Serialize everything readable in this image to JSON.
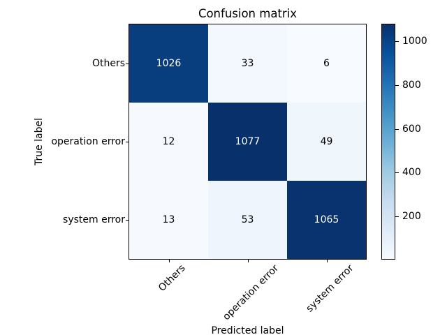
{
  "figure": {
    "background": "#ffffff",
    "text_color": "#000000"
  },
  "chart_data": {
    "type": "heatmap",
    "title": "Confusion matrix",
    "xlabel": "Predicted label",
    "ylabel": "True label",
    "x_categories": [
      "Others",
      "operation error",
      "system error"
    ],
    "y_categories": [
      "Others",
      "operation error",
      "system error"
    ],
    "rows": [
      [
        1026,
        33,
        6
      ],
      [
        12,
        1077,
        49
      ],
      [
        13,
        53,
        1065
      ]
    ],
    "vmin": 6,
    "vmax": 1077,
    "colormap": "Blues",
    "colormap_stops": [
      "#f7fbff",
      "#deebf7",
      "#c6dbef",
      "#9ecae1",
      "#6baed6",
      "#4292c6",
      "#2171b5",
      "#08519c",
      "#08306b"
    ],
    "cell_text_color_high": "#ffffff",
    "cell_text_color_low": "#000000",
    "xticks_rotation": 45,
    "grid": false,
    "colorbar": {
      "position": "right",
      "ticks": [
        200,
        400,
        600,
        800,
        1000
      ]
    }
  }
}
